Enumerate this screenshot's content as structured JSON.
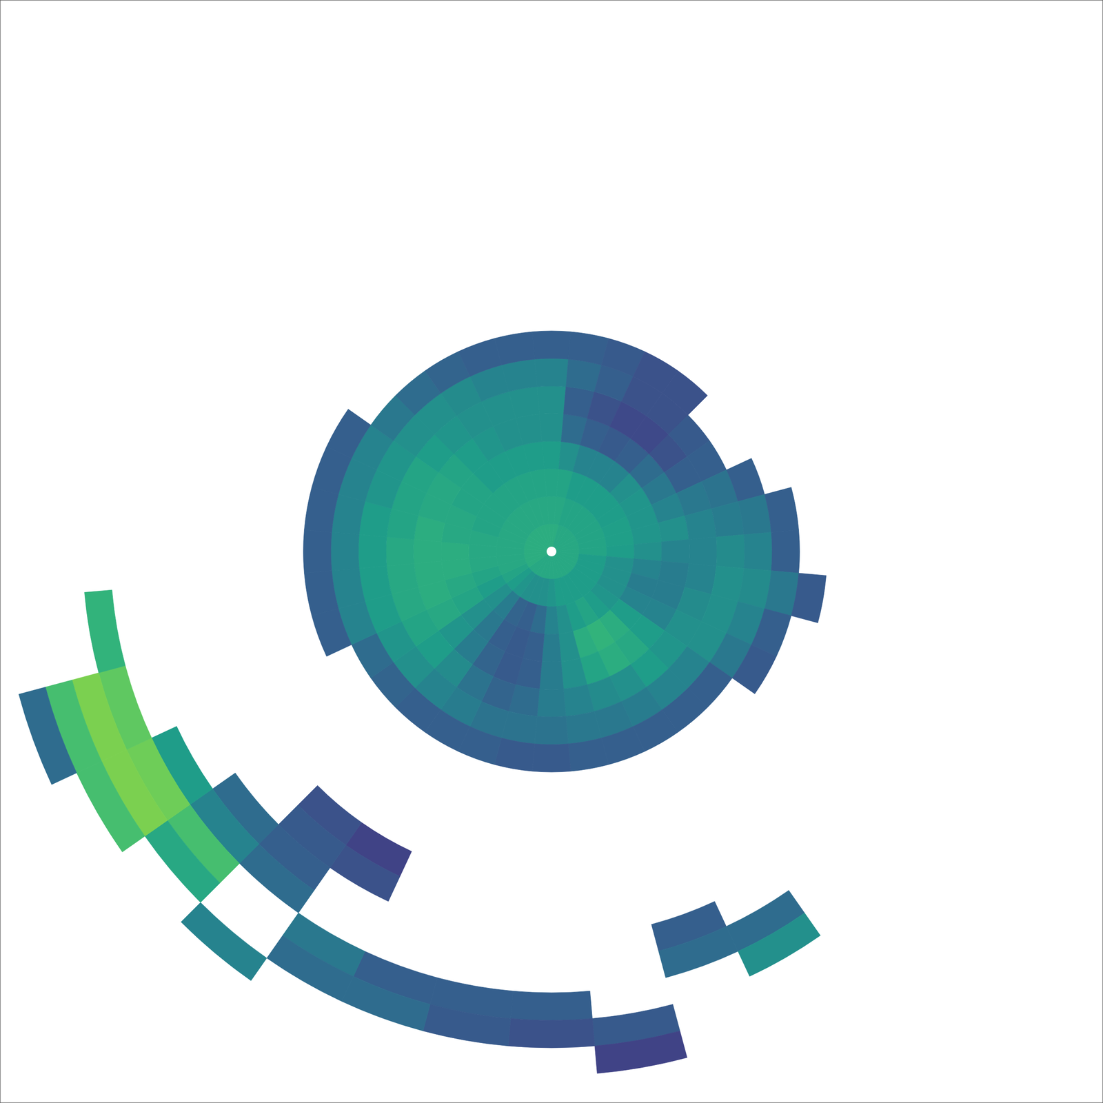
{
  "chart_data": {
    "type": "polar_heatmap",
    "tick_labels": false,
    "grid": false,
    "color": "viridis",
    "rlim": [
      0,
      100
    ],
    "clim": [
      0,
      1
    ],
    "range_bins": [
      0,
      5,
      10,
      15,
      20,
      25,
      30,
      35,
      40,
      45,
      50,
      55,
      60,
      65,
      70,
      75,
      80,
      85,
      90,
      95,
      100
    ],
    "azimuths": [
      0,
      10,
      20,
      30,
      40,
      50,
      60,
      70,
      80,
      90,
      100,
      110,
      120,
      130,
      140,
      150,
      160,
      170,
      180,
      190,
      200,
      210,
      220,
      230,
      240,
      250,
      260,
      270,
      280,
      290,
      300,
      310,
      320,
      330,
      340,
      350
    ],
    "cells": [
      [
        0.62,
        0.6,
        0.58,
        0.55,
        0.5,
        0.5,
        0.45,
        0.3,
        null,
        null,
        null,
        null,
        null,
        null,
        null,
        null,
        null,
        null,
        null,
        null
      ],
      [
        0.62,
        0.6,
        0.58,
        0.5,
        0.35,
        0.3,
        0.35,
        0.3,
        null,
        null,
        null,
        null,
        null,
        null,
        null,
        null,
        null,
        null,
        null,
        null
      ],
      [
        0.6,
        0.58,
        0.55,
        0.45,
        0.3,
        0.25,
        0.3,
        0.28,
        null,
        null,
        null,
        null,
        null,
        null,
        null,
        null,
        null,
        null,
        null,
        null
      ],
      [
        0.6,
        0.58,
        0.55,
        0.45,
        0.28,
        0.22,
        0.25,
        0.25,
        null,
        null,
        null,
        null,
        null,
        null,
        null,
        null,
        null,
        null,
        null,
        null
      ],
      [
        0.6,
        0.58,
        0.55,
        0.45,
        0.3,
        0.22,
        0.25,
        0.25,
        null,
        null,
        null,
        null,
        null,
        null,
        null,
        null,
        null,
        null,
        null,
        null
      ],
      [
        0.6,
        0.58,
        0.55,
        0.5,
        0.35,
        0.25,
        0.28,
        null,
        null,
        null,
        null,
        null,
        null,
        null,
        null,
        null,
        null,
        null,
        null,
        null
      ],
      [
        0.6,
        0.58,
        0.55,
        0.52,
        0.4,
        0.3,
        0.3,
        null,
        null,
        null,
        null,
        null,
        null,
        null,
        null,
        null,
        null,
        null,
        null,
        null
      ],
      [
        0.6,
        0.58,
        0.56,
        0.52,
        0.45,
        0.4,
        0.38,
        0.3,
        null,
        null,
        null,
        null,
        null,
        null,
        null,
        null,
        null,
        null,
        null,
        null
      ],
      [
        0.6,
        0.58,
        0.56,
        0.52,
        0.5,
        0.45,
        0.42,
        0.4,
        0.3,
        null,
        null,
        null,
        null,
        null,
        null,
        null,
        null,
        null,
        null,
        null
      ],
      [
        0.6,
        0.58,
        0.55,
        0.5,
        0.45,
        0.45,
        0.48,
        0.45,
        0.3,
        null,
        null,
        null,
        null,
        null,
        null,
        null,
        null,
        null,
        null,
        null
      ],
      [
        0.6,
        0.55,
        0.5,
        0.45,
        0.42,
        0.45,
        0.5,
        0.48,
        0.4,
        0.28,
        null,
        null,
        null,
        null,
        null,
        null,
        null,
        null,
        null,
        null
      ],
      [
        0.6,
        0.55,
        0.5,
        0.42,
        0.42,
        0.48,
        0.5,
        0.45,
        0.3,
        null,
        null,
        null,
        null,
        null,
        null,
        null,
        null,
        null,
        null,
        null
      ],
      [
        0.6,
        0.55,
        0.5,
        0.45,
        0.45,
        0.5,
        0.5,
        0.4,
        0.28,
        null,
        null,
        null,
        null,
        null,
        null,
        null,
        null,
        null,
        null,
        null
      ],
      [
        0.6,
        0.55,
        0.52,
        0.55,
        0.55,
        0.52,
        0.45,
        0.3,
        null,
        null,
        null,
        null,
        null,
        null,
        null,
        null,
        null,
        null,
        null,
        null
      ],
      [
        0.6,
        0.55,
        0.55,
        0.62,
        0.6,
        0.55,
        0.45,
        0.3,
        null,
        null,
        null,
        null,
        null,
        null,
        null,
        null,
        null,
        null,
        null,
        null
      ],
      [
        0.6,
        0.55,
        0.58,
        0.65,
        0.62,
        0.5,
        0.42,
        0.3,
        null,
        null,
        null,
        null,
        null,
        null,
        null,
        0.35,
        0.5,
        null,
        null,
        null
      ],
      [
        0.6,
        0.55,
        0.55,
        0.62,
        0.58,
        0.48,
        0.4,
        0.3,
        null,
        null,
        null,
        null,
        null,
        null,
        0.3,
        0.35,
        null,
        null,
        null,
        null
      ],
      [
        0.6,
        0.55,
        0.5,
        0.5,
        0.5,
        0.45,
        0.4,
        0.3,
        null,
        null,
        null,
        null,
        null,
        null,
        null,
        null,
        null,
        0.28,
        0.2,
        null
      ],
      [
        0.6,
        0.52,
        0.45,
        0.42,
        0.42,
        0.42,
        0.38,
        0.28,
        null,
        null,
        null,
        null,
        null,
        null,
        null,
        null,
        0.3,
        0.25,
        null,
        null
      ],
      [
        0.6,
        0.5,
        0.35,
        0.3,
        0.3,
        0.35,
        0.38,
        0.28,
        null,
        null,
        null,
        null,
        null,
        null,
        null,
        null,
        0.3,
        0.28,
        null,
        null
      ],
      [
        0.6,
        0.5,
        0.3,
        0.28,
        0.28,
        0.32,
        0.38,
        0.3,
        null,
        null,
        null,
        null,
        null,
        null,
        null,
        null,
        0.3,
        0.35,
        null,
        null
      ],
      [
        0.6,
        0.5,
        0.32,
        0.3,
        0.32,
        0.38,
        0.42,
        0.3,
        null,
        null,
        null,
        null,
        0.2,
        0.25,
        null,
        null,
        0.4,
        0.35,
        null,
        null
      ],
      [
        0.6,
        0.52,
        0.42,
        0.4,
        0.42,
        0.48,
        0.45,
        0.3,
        null,
        null,
        null,
        null,
        0.25,
        0.28,
        0.3,
        0.35,
        null,
        null,
        0.45,
        null
      ],
      [
        0.6,
        0.55,
        0.5,
        0.5,
        0.52,
        0.55,
        0.5,
        0.32,
        null,
        null,
        null,
        null,
        null,
        null,
        0.35,
        0.45,
        0.7,
        0.6,
        null,
        null
      ],
      [
        0.62,
        0.58,
        0.55,
        0.58,
        0.6,
        0.58,
        0.52,
        0.35,
        null,
        null,
        null,
        null,
        null,
        null,
        null,
        0.55,
        0.78,
        0.8,
        0.7,
        null
      ],
      [
        0.62,
        0.6,
        0.58,
        0.6,
        0.62,
        0.6,
        0.55,
        0.45,
        0.3,
        null,
        null,
        null,
        null,
        null,
        null,
        null,
        0.75,
        0.8,
        0.7,
        0.35
      ],
      [
        0.62,
        0.6,
        0.6,
        0.62,
        0.62,
        0.6,
        0.55,
        0.45,
        0.3,
        null,
        null,
        null,
        null,
        null,
        null,
        null,
        0.65,
        null,
        null,
        null
      ],
      [
        0.62,
        0.6,
        0.6,
        0.62,
        0.62,
        0.6,
        0.55,
        0.45,
        0.3,
        null,
        null,
        null,
        null,
        null,
        null,
        null,
        null,
        null,
        null,
        null
      ],
      [
        0.62,
        0.6,
        0.6,
        0.6,
        0.62,
        0.58,
        0.55,
        0.45,
        0.3,
        null,
        null,
        null,
        null,
        null,
        null,
        null,
        null,
        null,
        null,
        null
      ],
      [
        0.62,
        0.6,
        0.58,
        0.6,
        0.6,
        0.58,
        0.52,
        0.45,
        0.3,
        null,
        null,
        null,
        null,
        null,
        null,
        null,
        null,
        null,
        null,
        null
      ],
      [
        0.62,
        0.6,
        0.58,
        0.58,
        0.6,
        0.58,
        0.52,
        0.45,
        0.3,
        null,
        null,
        null,
        null,
        null,
        null,
        null,
        null,
        null,
        null,
        null
      ],
      [
        0.62,
        0.6,
        0.58,
        0.58,
        0.58,
        0.55,
        0.5,
        0.4,
        null,
        null,
        null,
        null,
        null,
        null,
        null,
        null,
        null,
        null,
        null,
        null
      ],
      [
        0.62,
        0.6,
        0.58,
        0.55,
        0.55,
        0.52,
        0.5,
        0.35,
        null,
        null,
        null,
        null,
        null,
        null,
        null,
        null,
        null,
        null,
        null,
        null
      ],
      [
        0.62,
        0.6,
        0.58,
        0.55,
        0.52,
        0.5,
        0.48,
        0.32,
        null,
        null,
        null,
        null,
        null,
        null,
        null,
        null,
        null,
        null,
        null,
        null
      ],
      [
        0.62,
        0.6,
        0.58,
        0.55,
        0.5,
        0.5,
        0.45,
        0.3,
        null,
        null,
        null,
        null,
        null,
        null,
        null,
        null,
        null,
        null,
        null,
        null
      ],
      [
        0.62,
        0.6,
        0.58,
        0.55,
        0.5,
        0.5,
        0.45,
        0.3,
        null,
        null,
        null,
        null,
        null,
        null,
        null,
        null,
        null,
        null,
        null,
        null
      ]
    ]
  }
}
